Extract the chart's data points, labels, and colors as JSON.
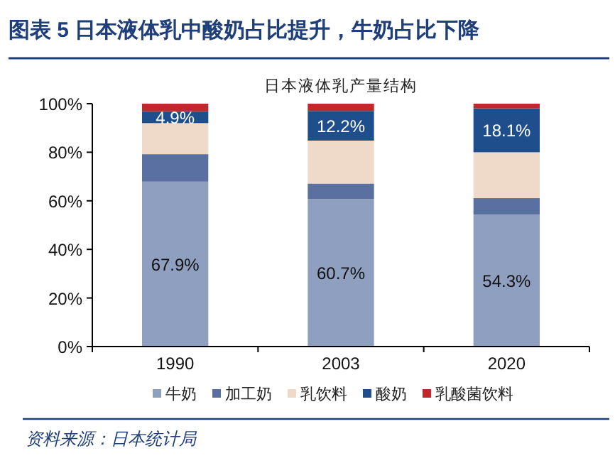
{
  "chart_data": {
    "type": "bar",
    "title": "图表 5   日本液体乳中酸奶占比提升，牛奶占比下降",
    "subtitle": "日本液体乳产量结构",
    "annotations": [
      "资料来源：日本统计局"
    ],
    "categories": [
      "1990",
      "2003",
      "2020"
    ],
    "stacked": true,
    "legend": "bottom",
    "grid": false,
    "ylim": [
      0,
      100
    ],
    "yticks": [
      {
        "value": 0,
        "label": "0%"
      },
      {
        "value": 20,
        "label": "20%"
      },
      {
        "value": 40,
        "label": "40%"
      },
      {
        "value": 60,
        "label": "60%"
      },
      {
        "value": 80,
        "label": "80%"
      },
      {
        "value": 100,
        "label": "100%"
      }
    ],
    "series": [
      {
        "name": "牛奶",
        "color": "#8f9fbf",
        "values": [
          67.9,
          60.7,
          54.3
        ],
        "value_labels": [
          "67.9%",
          "60.7%",
          "54.3%"
        ]
      },
      {
        "name": "加工奶",
        "color": "#5a70a0",
        "values": [
          11.3,
          6.4,
          6.8
        ]
      },
      {
        "name": "乳饮料",
        "color": "#efd9c9",
        "values": [
          12.8,
          17.7,
          18.9
        ]
      },
      {
        "name": "酸奶",
        "color": "#1f4e8c",
        "values": [
          4.9,
          12.2,
          18.1
        ],
        "value_labels": [
          "4.9%",
          "12.2%",
          "18.1%"
        ]
      },
      {
        "name": "乳酸菌饮料",
        "color": "#c0282e",
        "values": [
          3.1,
          3.0,
          1.9
        ]
      }
    ]
  }
}
